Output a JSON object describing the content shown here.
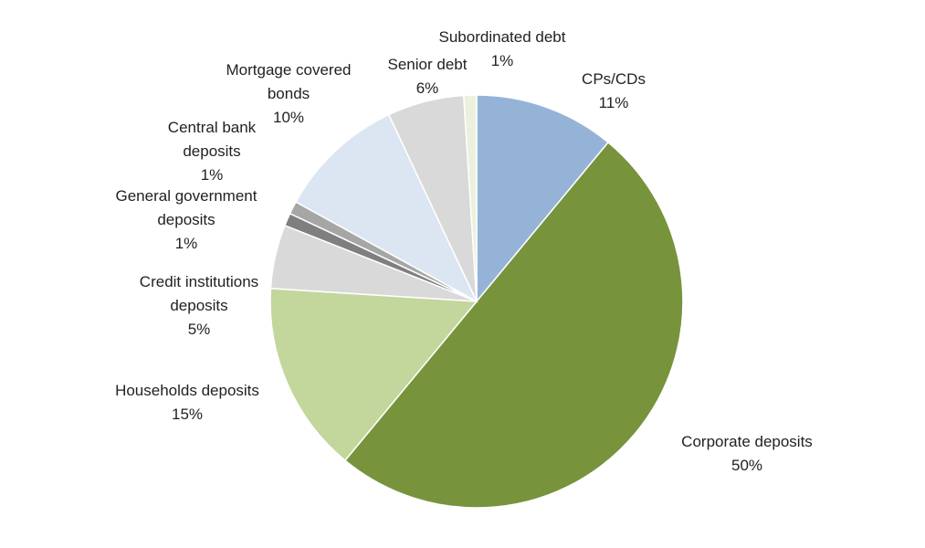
{
  "chart_data": {
    "type": "pie",
    "categories": [
      "CPs/CDs",
      "Corporate deposits",
      "Households deposits",
      "Credit institutions deposits",
      "General government deposits",
      "Central bank deposits",
      "Mortgage covered bonds",
      "Senior debt",
      "Subordinated debt"
    ],
    "values": [
      11,
      50,
      15,
      5,
      1,
      1,
      10,
      6,
      1
    ],
    "value_labels": [
      "11%",
      "50%",
      "15%",
      "5%",
      "1%",
      "1%",
      "10%",
      "6%",
      "1%"
    ],
    "colors": [
      "#95b3d7",
      "#77933c",
      "#c3d69b",
      "#d9d9d9",
      "#7f7f7f",
      "#a6a6a6",
      "#dce6f2",
      "#d9d9d9",
      "#ebf1de"
    ]
  }
}
